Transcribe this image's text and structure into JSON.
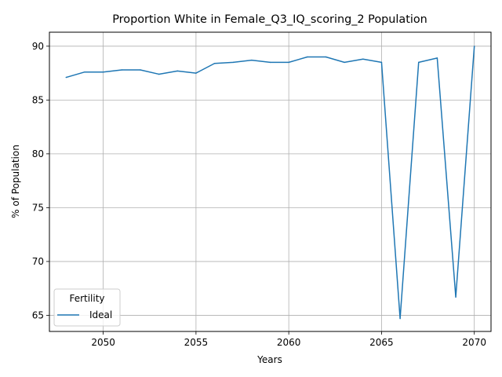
{
  "chart_data": {
    "type": "line",
    "title": "Proportion White in Female_Q3_IQ_scoring_2 Population",
    "xlabel": "Years",
    "ylabel": "% of Population",
    "xlim": [
      2047.1,
      2070.9
    ],
    "ylim": [
      63.5,
      91.3
    ],
    "xticks": [
      2050,
      2055,
      2060,
      2065,
      2070
    ],
    "yticks": [
      65,
      70,
      75,
      80,
      85,
      90
    ],
    "grid": true,
    "legend": {
      "title": "Fertility",
      "placement": "lower-left"
    },
    "series": [
      {
        "name": "Ideal",
        "color": "#1f77b4",
        "x": [
          2048,
          2049,
          2050,
          2051,
          2052,
          2053,
          2054,
          2055,
          2056,
          2057,
          2058,
          2059,
          2060,
          2061,
          2062,
          2063,
          2064,
          2065,
          2066,
          2067,
          2068,
          2069,
          2070
        ],
        "y": [
          87.1,
          87.6,
          87.6,
          87.8,
          87.8,
          87.4,
          87.7,
          87.5,
          88.4,
          88.5,
          88.7,
          88.5,
          88.5,
          89.0,
          89.0,
          88.5,
          88.8,
          88.5,
          64.7,
          88.5,
          88.9,
          66.7,
          90.0
        ]
      }
    ]
  }
}
